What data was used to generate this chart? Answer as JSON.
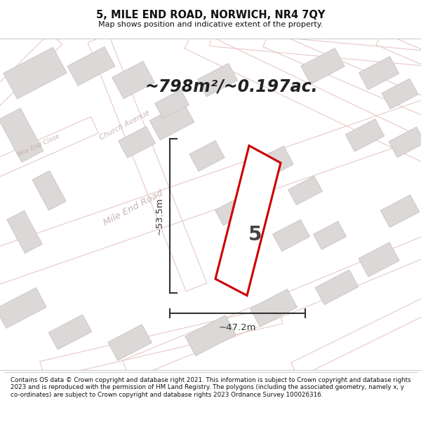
{
  "title": "5, MILE END ROAD, NORWICH, NR4 7QY",
  "subtitle": "Map shows position and indicative extent of the property.",
  "area_text": "~798m²/~0.197ac.",
  "property_number": "5",
  "dim_width": "~47.2m",
  "dim_height": "~53.5m",
  "footer": "Contains OS data © Crown copyright and database right 2021. This information is subject to Crown copyright and database rights 2023 and is reproduced with the permission of HM Land Registry. The polygons (including the associated geometry, namely x, y co-ordinates) are subject to Crown copyright and database rights 2023 Ordnance Survey 100026316.",
  "map_bg": "#f2eeee",
  "road_stroke": "#e8c8c8",
  "road_fill": "#ffffff",
  "building_fill": "#ddd8d8",
  "building_edge": "#ccc8c8",
  "property_color": "#cc0000",
  "dim_color": "#333333",
  "label_color": "#bbaaaa",
  "title_color": "#111111",
  "footer_color": "#111111",
  "area_color": "#222222"
}
